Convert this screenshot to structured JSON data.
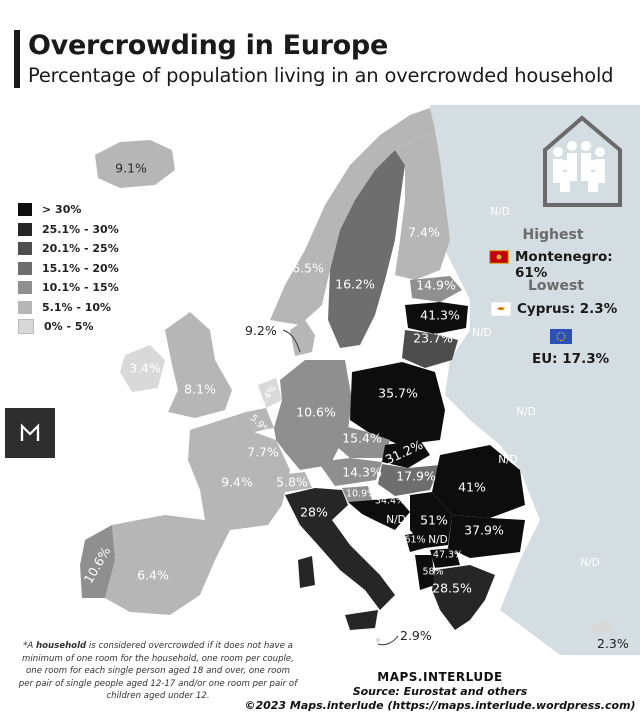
{
  "header": {
    "title": "Overcrowding in Europe",
    "subtitle": "Percentage of population living in an overcrowded household"
  },
  "legend": [
    {
      "label": "> 30%",
      "color": "#0d0d0d"
    },
    {
      "label": "25.1% - 30%",
      "color": "#262626"
    },
    {
      "label": "20.1% - 25%",
      "color": "#4d4d4d"
    },
    {
      "label": "15.1% - 20%",
      "color": "#6e6e6e"
    },
    {
      "label": "10.1% - 15%",
      "color": "#8f8f8f"
    },
    {
      "label": "5.1% - 10%",
      "color": "#b6b6b6"
    },
    {
      "label": "0% - 5%",
      "color": "#d9d9d9"
    }
  ],
  "colors": {
    "no_data": "#d4dde2",
    "sea": "#ffffff",
    "no_data_label": "#ffffff"
  },
  "stats": {
    "highest_label": "Highest",
    "highest_value": "Montenegro: 61%",
    "lowest_label": "Lowest",
    "lowest_value": "Cyprus: 2.3%",
    "eu_value": "EU: 17.3%"
  },
  "countries": [
    {
      "name": "Iceland",
      "value": "9.1%"
    },
    {
      "name": "Finland",
      "value": "7.4%"
    },
    {
      "name": "Sweden",
      "value": "16.2%"
    },
    {
      "name": "Norway",
      "value": "6.5%"
    },
    {
      "name": "Estonia",
      "value": "14.9%"
    },
    {
      "name": "Latvia",
      "value": "41.3%"
    },
    {
      "name": "Lithuania",
      "value": "23.7%"
    },
    {
      "name": "Denmark",
      "value": "9.2%"
    },
    {
      "name": "Ireland",
      "value": "3.4%"
    },
    {
      "name": "United Kingdom",
      "value": "8.1%"
    },
    {
      "name": "Netherlands",
      "value": "3.4%"
    },
    {
      "name": "Belgium",
      "value": "5.9%"
    },
    {
      "name": "Luxembourg",
      "value": "7.7%"
    },
    {
      "name": "Germany",
      "value": "10.6%"
    },
    {
      "name": "Poland",
      "value": "35.7%"
    },
    {
      "name": "Czechia",
      "value": "15.4%"
    },
    {
      "name": "Slovakia",
      "value": "31.2%"
    },
    {
      "name": "Austria",
      "value": "14.3%"
    },
    {
      "name": "Hungary",
      "value": "17.9%"
    },
    {
      "name": "Romania",
      "value": "41%"
    },
    {
      "name": "France",
      "value": "9.4%"
    },
    {
      "name": "Switzerland",
      "value": "5.8%"
    },
    {
      "name": "Slovenia",
      "value": "10.9%"
    },
    {
      "name": "Croatia",
      "value": "34.4%"
    },
    {
      "name": "Serbia",
      "value": "51%"
    },
    {
      "name": "Bulgaria",
      "value": "37.9%"
    },
    {
      "name": "Italy",
      "value": "28%"
    },
    {
      "name": "Montenegro",
      "value": "61%"
    },
    {
      "name": "North Macedonia",
      "value": "47.3%"
    },
    {
      "name": "Albania",
      "value": "58%"
    },
    {
      "name": "Greece",
      "value": "28.5%"
    },
    {
      "name": "Portugal",
      "value": "10.6%"
    },
    {
      "name": "Spain",
      "value": "6.4%"
    },
    {
      "name": "Malta",
      "value": "2.9%"
    },
    {
      "name": "Cyprus",
      "value": "2.3%"
    }
  ],
  "no_data_label": "N/D",
  "footnote": {
    "prefix": "*A ",
    "bold": "household",
    "rest": " is considered overcrowded if it does not have a minimum of one room for the household, one room per couple, one room for each single person aged 18 and over, one room per pair of single people aged 12-17 and/or one room per pair of children aged under 12."
  },
  "credits": {
    "brand": "MAPS.INTERLUDE",
    "source": "Source: Eurostat and others",
    "copyright": "©2023 Maps.interlude (https://maps.interlude.wordpress.com)"
  }
}
